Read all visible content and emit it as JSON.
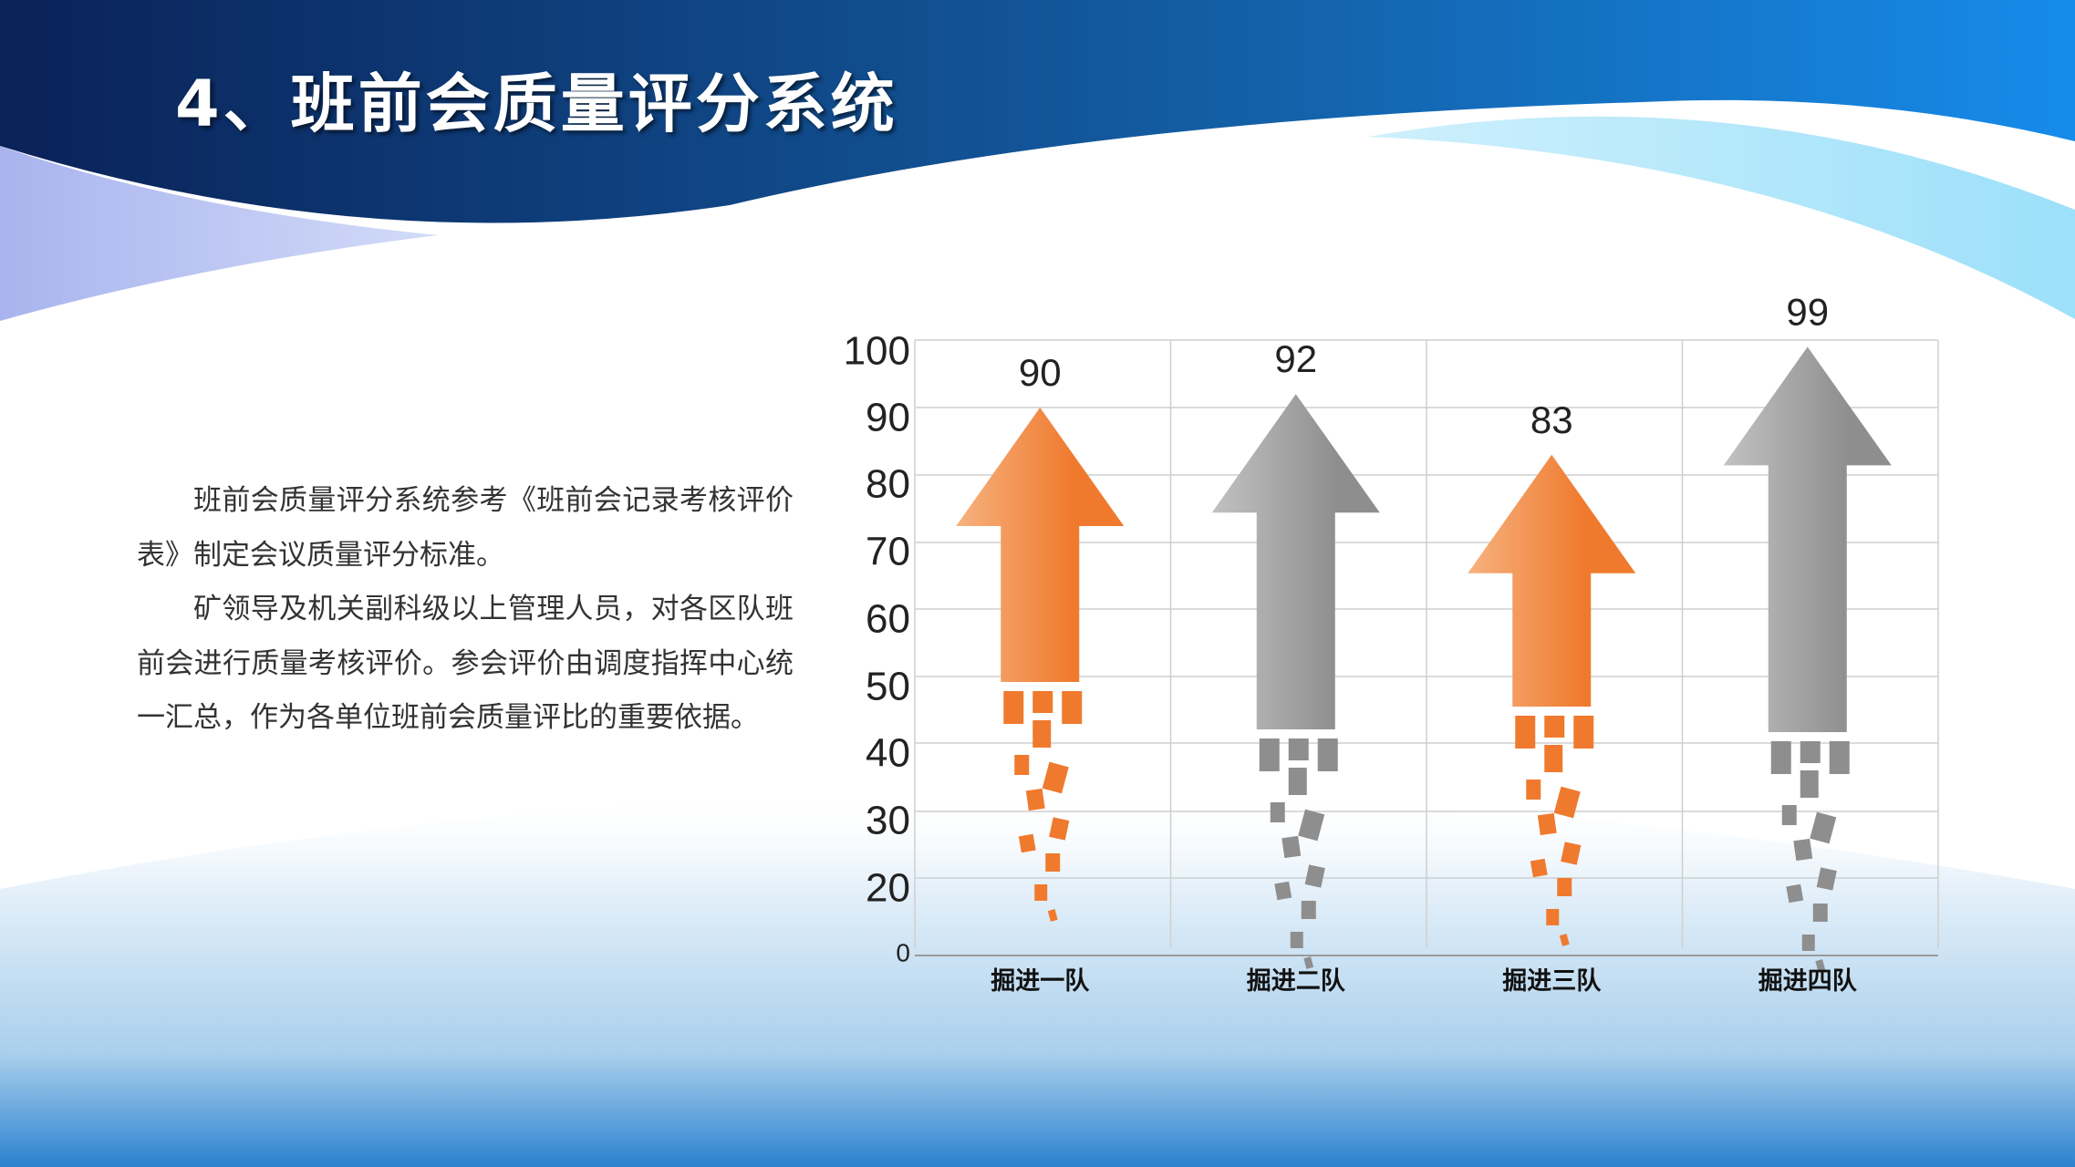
{
  "slide": {
    "title": "4、班前会质量评分系统",
    "paragraphs": [
      "班前会质量评分系统参考《班前会记录考核评价表》制定会议质量评分标准。",
      "矿领导及机关副科级以上管理人员，对各区队班前会进行质量考核评价。参会评价由调度指挥中心统一汇总，作为各单位班前会质量评比的重要依据。"
    ]
  },
  "colors": {
    "orange": "#EF7A2E",
    "orange_light": "#F6B27F",
    "gray": "#8E8E8E",
    "gray_light": "#C2C2C2",
    "header_dark": "#0B2C68",
    "header_bright": "#1686E8"
  },
  "chart_data": {
    "type": "bar",
    "mark_style": "arrow",
    "categories": [
      "掘进一队",
      "掘进二队",
      "掘进三队",
      "掘进四队"
    ],
    "series": [
      {
        "values": [
          90,
          92,
          83,
          99
        ]
      }
    ],
    "bar_colors": [
      "orange",
      "gray",
      "orange",
      "gray"
    ],
    "data_labels": [
      "90",
      "92",
      "83",
      "99"
    ],
    "y_ticks": [
      "0",
      "20",
      "30",
      "40",
      "50",
      "60",
      "70",
      "80",
      "90",
      "100"
    ],
    "ylim": [
      0,
      100
    ],
    "grid": true,
    "legend": "none"
  }
}
